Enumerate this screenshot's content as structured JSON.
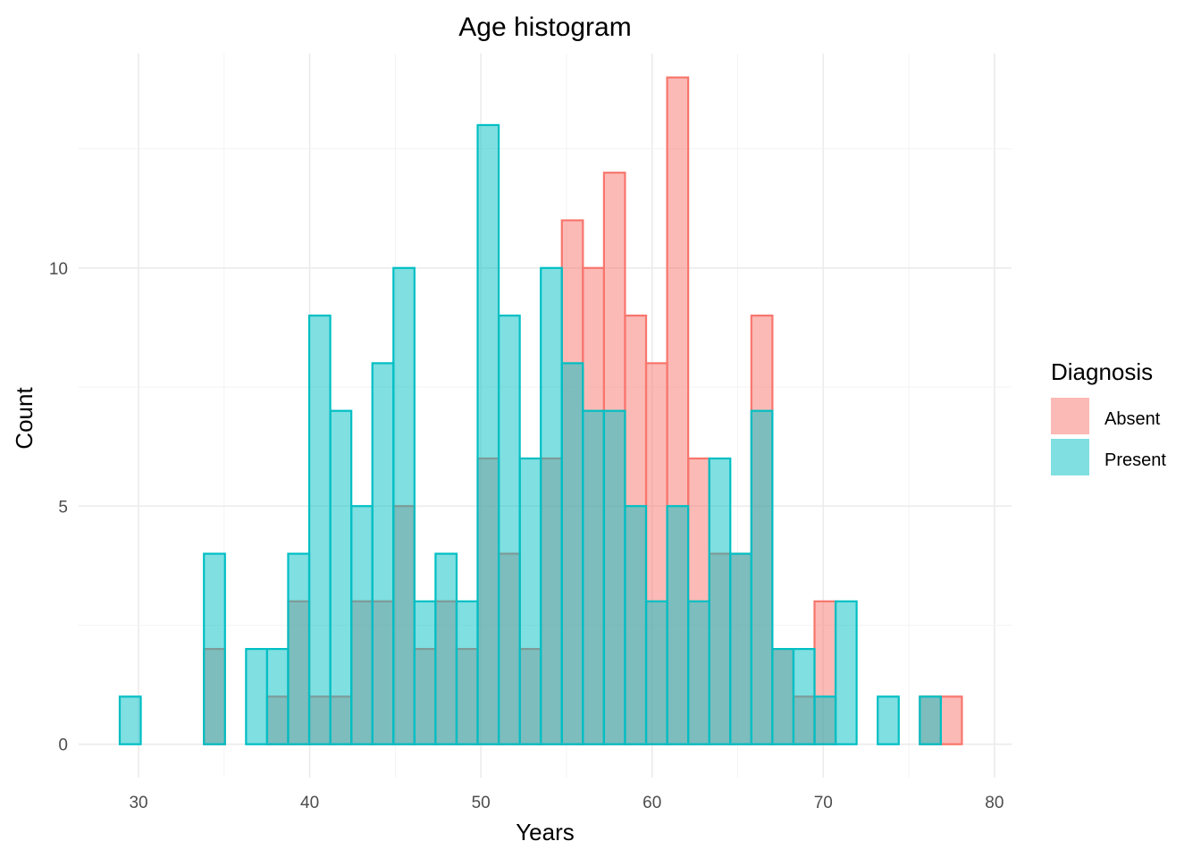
{
  "chart_data": {
    "type": "bar",
    "subtype": "overlaid-histogram",
    "title": "Age histogram",
    "xlabel": "Years",
    "ylabel": "Count",
    "xlim": [
      26.5,
      81
    ],
    "ylim": [
      -0.7,
      14.5
    ],
    "x_ticks": [
      30,
      40,
      50,
      60,
      70,
      80
    ],
    "y_ticks": [
      0,
      5,
      10
    ],
    "bin_width": 1.23,
    "bin_start": 28.9,
    "grid": true,
    "legend": {
      "title": "Diagnosis",
      "position": "right",
      "entries": [
        "Absent",
        "Present"
      ]
    },
    "series": [
      {
        "name": "Absent",
        "fill": "#F8766D",
        "stroke": "#F8766D",
        "fill_opacity": 0.5,
        "values": [
          0,
          0,
          0,
          0,
          2,
          0,
          0,
          1,
          3,
          1,
          1,
          3,
          3,
          5,
          2,
          3,
          2,
          6,
          4,
          2,
          6,
          11,
          10,
          12,
          9,
          8,
          14,
          6,
          4,
          4,
          9,
          2,
          1,
          3,
          0,
          0,
          0,
          0,
          1,
          1
        ]
      },
      {
        "name": "Present",
        "fill": "#00BFC4",
        "stroke": "#00BFC4",
        "fill_opacity": 0.5,
        "values": [
          1,
          0,
          0,
          0,
          4,
          0,
          2,
          2,
          4,
          9,
          7,
          5,
          8,
          10,
          3,
          4,
          3,
          13,
          9,
          6,
          10,
          8,
          7,
          7,
          5,
          3,
          5,
          3,
          6,
          4,
          7,
          2,
          2,
          1,
          3,
          0,
          1,
          0,
          1,
          0
        ]
      }
    ]
  }
}
